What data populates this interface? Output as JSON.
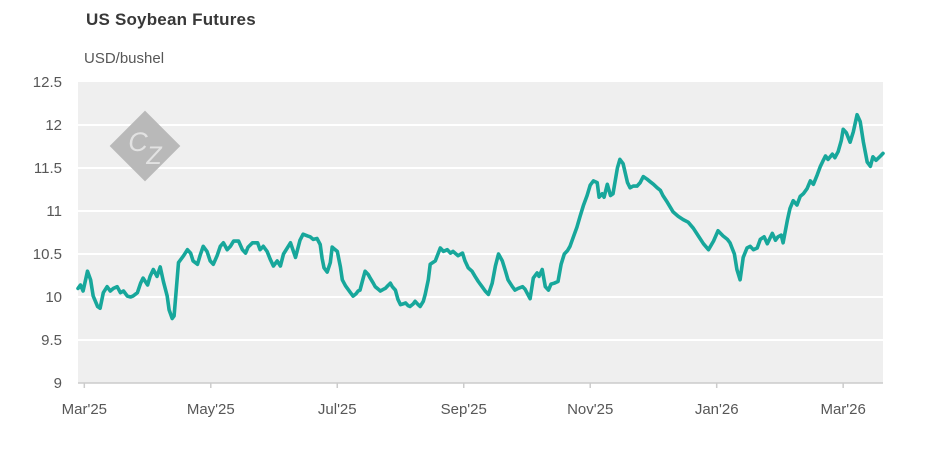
{
  "header": {
    "title": "US Soybean Futures",
    "subtitle": "USD/bushel"
  },
  "watermark": {
    "c": "C",
    "z": "Z",
    "diamond_color": "#b9b9b9",
    "letter_color": "#e2e2e2"
  },
  "chart_data": {
    "type": "line",
    "title": "US Soybean Futures",
    "ylabel": "USD/bushel",
    "xlabel": "",
    "legend": "none",
    "grid": "horizontal-white-on-gray",
    "x_axis": {
      "unit": "months since Mar 2025",
      "range": [
        -0.1,
        12.63
      ],
      "ticks": [
        0,
        2,
        4,
        6,
        8,
        10,
        12
      ],
      "tick_labels": [
        "Mar'25",
        "May'25",
        "Jul'25",
        "Sep'25",
        "Nov'25",
        "Jan'26",
        "Mar'26"
      ]
    },
    "y_axis": {
      "range": [
        9,
        12.5
      ],
      "ticks": [
        9,
        9.5,
        10,
        10.5,
        11,
        11.5,
        12,
        12.5
      ],
      "tick_labels": [
        "9",
        "9.5",
        "10",
        "10.5",
        "11",
        "11.5",
        "12",
        "12.5"
      ]
    },
    "style": {
      "line_color": "#17a79b",
      "line_width": 3.6,
      "plot_bg": "#efefef",
      "grid_color": "#ffffff",
      "axis_color": "#cccccc",
      "label_color": "#575757"
    },
    "series": [
      {
        "name": "US Soybean Futures (USD/bushel)",
        "points": [
          [
            -0.1,
            10.1
          ],
          [
            -0.06,
            10.14
          ],
          [
            -0.02,
            10.07
          ],
          [
            0.05,
            10.3
          ],
          [
            0.1,
            10.2
          ],
          [
            0.14,
            10.01
          ],
          [
            0.21,
            9.89
          ],
          [
            0.25,
            9.87
          ],
          [
            0.3,
            10.05
          ],
          [
            0.36,
            10.12
          ],
          [
            0.41,
            10.07
          ],
          [
            0.46,
            10.1
          ],
          [
            0.52,
            10.12
          ],
          [
            0.57,
            10.05
          ],
          [
            0.62,
            10.07
          ],
          [
            0.68,
            10.01
          ],
          [
            0.73,
            10.0
          ],
          [
            0.77,
            10.01
          ],
          [
            0.84,
            10.05
          ],
          [
            0.89,
            10.16
          ],
          [
            0.93,
            10.22
          ],
          [
            1.0,
            10.14
          ],
          [
            1.04,
            10.24
          ],
          [
            1.09,
            10.32
          ],
          [
            1.15,
            10.24
          ],
          [
            1.2,
            10.35
          ],
          [
            1.25,
            10.18
          ],
          [
            1.31,
            10.01
          ],
          [
            1.34,
            9.85
          ],
          [
            1.39,
            9.75
          ],
          [
            1.42,
            9.78
          ],
          [
            1.49,
            10.4
          ],
          [
            1.57,
            10.48
          ],
          [
            1.63,
            10.55
          ],
          [
            1.68,
            10.51
          ],
          [
            1.72,
            10.42
          ],
          [
            1.79,
            10.38
          ],
          [
            1.83,
            10.48
          ],
          [
            1.88,
            10.59
          ],
          [
            1.94,
            10.53
          ],
          [
            1.99,
            10.42
          ],
          [
            2.04,
            10.38
          ],
          [
            2.1,
            10.48
          ],
          [
            2.15,
            10.59
          ],
          [
            2.2,
            10.63
          ],
          [
            2.26,
            10.55
          ],
          [
            2.31,
            10.59
          ],
          [
            2.36,
            10.65
          ],
          [
            2.44,
            10.65
          ],
          [
            2.5,
            10.55
          ],
          [
            2.55,
            10.51
          ],
          [
            2.59,
            10.58
          ],
          [
            2.66,
            10.63
          ],
          [
            2.74,
            10.63
          ],
          [
            2.78,
            10.55
          ],
          [
            2.83,
            10.59
          ],
          [
            2.89,
            10.53
          ],
          [
            2.94,
            10.44
          ],
          [
            2.99,
            10.36
          ],
          [
            3.05,
            10.42
          ],
          [
            3.1,
            10.36
          ],
          [
            3.15,
            10.5
          ],
          [
            3.26,
            10.63
          ],
          [
            3.34,
            10.46
          ],
          [
            3.41,
            10.66
          ],
          [
            3.46,
            10.73
          ],
          [
            3.53,
            10.71
          ],
          [
            3.57,
            10.7
          ],
          [
            3.62,
            10.67
          ],
          [
            3.68,
            10.68
          ],
          [
            3.73,
            10.61
          ],
          [
            3.76,
            10.45
          ],
          [
            3.79,
            10.34
          ],
          [
            3.84,
            10.29
          ],
          [
            3.89,
            10.4
          ],
          [
            3.92,
            10.58
          ],
          [
            3.95,
            10.56
          ],
          [
            4.0,
            10.53
          ],
          [
            4.05,
            10.35
          ],
          [
            4.08,
            10.2
          ],
          [
            4.13,
            10.13
          ],
          [
            4.16,
            10.1
          ],
          [
            4.21,
            10.05
          ],
          [
            4.25,
            10.01
          ],
          [
            4.3,
            10.04
          ],
          [
            4.33,
            10.07
          ],
          [
            4.36,
            10.08
          ],
          [
            4.41,
            10.22
          ],
          [
            4.44,
            10.3
          ],
          [
            4.49,
            10.26
          ],
          [
            4.52,
            10.22
          ],
          [
            4.57,
            10.16
          ],
          [
            4.6,
            10.12
          ],
          [
            4.65,
            10.09
          ],
          [
            4.68,
            10.07
          ],
          [
            4.73,
            10.09
          ],
          [
            4.76,
            10.1
          ],
          [
            4.81,
            10.14
          ],
          [
            4.84,
            10.16
          ],
          [
            4.87,
            10.12
          ],
          [
            4.92,
            10.08
          ],
          [
            4.96,
            9.97
          ],
          [
            5.0,
            9.91
          ],
          [
            5.04,
            9.92
          ],
          [
            5.08,
            9.93
          ],
          [
            5.12,
            9.9
          ],
          [
            5.15,
            9.89
          ],
          [
            5.2,
            9.92
          ],
          [
            5.23,
            9.95
          ],
          [
            5.28,
            9.91
          ],
          [
            5.31,
            9.89
          ],
          [
            5.36,
            9.95
          ],
          [
            5.39,
            10.03
          ],
          [
            5.44,
            10.2
          ],
          [
            5.47,
            10.38
          ],
          [
            5.55,
            10.42
          ],
          [
            5.63,
            10.57
          ],
          [
            5.68,
            10.53
          ],
          [
            5.74,
            10.55
          ],
          [
            5.79,
            10.51
          ],
          [
            5.83,
            10.53
          ],
          [
            5.91,
            10.48
          ],
          [
            5.98,
            10.51
          ],
          [
            6.02,
            10.42
          ],
          [
            6.07,
            10.34
          ],
          [
            6.13,
            10.3
          ],
          [
            6.18,
            10.24
          ],
          [
            6.23,
            10.18
          ],
          [
            6.29,
            10.12
          ],
          [
            6.34,
            10.07
          ],
          [
            6.39,
            10.03
          ],
          [
            6.45,
            10.16
          ],
          [
            6.5,
            10.36
          ],
          [
            6.55,
            10.5
          ],
          [
            6.61,
            10.42
          ],
          [
            6.66,
            10.3
          ],
          [
            6.7,
            10.2
          ],
          [
            6.77,
            10.12
          ],
          [
            6.81,
            10.08
          ],
          [
            6.86,
            10.1
          ],
          [
            6.93,
            10.12
          ],
          [
            6.97,
            10.09
          ],
          [
            7.05,
            9.98
          ],
          [
            7.1,
            10.22
          ],
          [
            7.16,
            10.28
          ],
          [
            7.19,
            10.24
          ],
          [
            7.24,
            10.32
          ],
          [
            7.29,
            10.12
          ],
          [
            7.34,
            10.08
          ],
          [
            7.38,
            10.15
          ],
          [
            7.43,
            10.16
          ],
          [
            7.49,
            10.18
          ],
          [
            7.54,
            10.38
          ],
          [
            7.59,
            10.5
          ],
          [
            7.64,
            10.54
          ],
          [
            7.68,
            10.59
          ],
          [
            7.73,
            10.69
          ],
          [
            7.79,
            10.81
          ],
          [
            7.84,
            10.94
          ],
          [
            7.89,
            11.06
          ],
          [
            7.95,
            11.18
          ],
          [
            8.0,
            11.3
          ],
          [
            8.05,
            11.35
          ],
          [
            8.11,
            11.33
          ],
          [
            8.14,
            11.16
          ],
          [
            8.19,
            11.2
          ],
          [
            8.22,
            11.16
          ],
          [
            8.27,
            11.31
          ],
          [
            8.32,
            11.18
          ],
          [
            8.36,
            11.2
          ],
          [
            8.43,
            11.5
          ],
          [
            8.47,
            11.6
          ],
          [
            8.52,
            11.55
          ],
          [
            8.59,
            11.33
          ],
          [
            8.63,
            11.27
          ],
          [
            8.68,
            11.29
          ],
          [
            8.74,
            11.29
          ],
          [
            8.79,
            11.33
          ],
          [
            8.84,
            11.4
          ],
          [
            8.9,
            11.37
          ],
          [
            8.95,
            11.34
          ],
          [
            9.0,
            11.31
          ],
          [
            9.06,
            11.27
          ],
          [
            9.11,
            11.24
          ],
          [
            9.15,
            11.18
          ],
          [
            9.22,
            11.1
          ],
          [
            9.27,
            11.04
          ],
          [
            9.31,
            10.99
          ],
          [
            9.39,
            10.94
          ],
          [
            9.47,
            10.9
          ],
          [
            9.55,
            10.87
          ],
          [
            9.63,
            10.8
          ],
          [
            9.71,
            10.71
          ],
          [
            9.79,
            10.62
          ],
          [
            9.87,
            10.55
          ],
          [
            9.95,
            10.65
          ],
          [
            10.02,
            10.77
          ],
          [
            10.1,
            10.71
          ],
          [
            10.17,
            10.67
          ],
          [
            10.21,
            10.63
          ],
          [
            10.28,
            10.5
          ],
          [
            10.32,
            10.32
          ],
          [
            10.37,
            10.2
          ],
          [
            10.42,
            10.46
          ],
          [
            10.48,
            10.57
          ],
          [
            10.53,
            10.59
          ],
          [
            10.58,
            10.55
          ],
          [
            10.64,
            10.57
          ],
          [
            10.69,
            10.67
          ],
          [
            10.75,
            10.7
          ],
          [
            10.8,
            10.62
          ],
          [
            10.88,
            10.74
          ],
          [
            10.93,
            10.66
          ],
          [
            10.97,
            10.7
          ],
          [
            11.02,
            10.72
          ],
          [
            11.05,
            10.63
          ],
          [
            11.12,
            10.9
          ],
          [
            11.16,
            11.03
          ],
          [
            11.21,
            11.12
          ],
          [
            11.27,
            11.07
          ],
          [
            11.32,
            11.17
          ],
          [
            11.37,
            11.2
          ],
          [
            11.43,
            11.26
          ],
          [
            11.48,
            11.35
          ],
          [
            11.53,
            11.31
          ],
          [
            11.59,
            11.42
          ],
          [
            11.64,
            11.52
          ],
          [
            11.68,
            11.58
          ],
          [
            11.72,
            11.64
          ],
          [
            11.76,
            11.6
          ],
          [
            11.83,
            11.66
          ],
          [
            11.87,
            11.62
          ],
          [
            11.92,
            11.69
          ],
          [
            11.97,
            11.82
          ],
          [
            12.0,
            11.95
          ],
          [
            12.05,
            11.91
          ],
          [
            12.11,
            11.8
          ],
          [
            12.16,
            11.92
          ],
          [
            12.22,
            12.12
          ],
          [
            12.27,
            12.04
          ],
          [
            12.32,
            11.8
          ],
          [
            12.38,
            11.57
          ],
          [
            12.43,
            11.52
          ],
          [
            12.47,
            11.63
          ],
          [
            12.52,
            11.59
          ],
          [
            12.59,
            11.64
          ],
          [
            12.63,
            11.67
          ]
        ]
      }
    ]
  }
}
